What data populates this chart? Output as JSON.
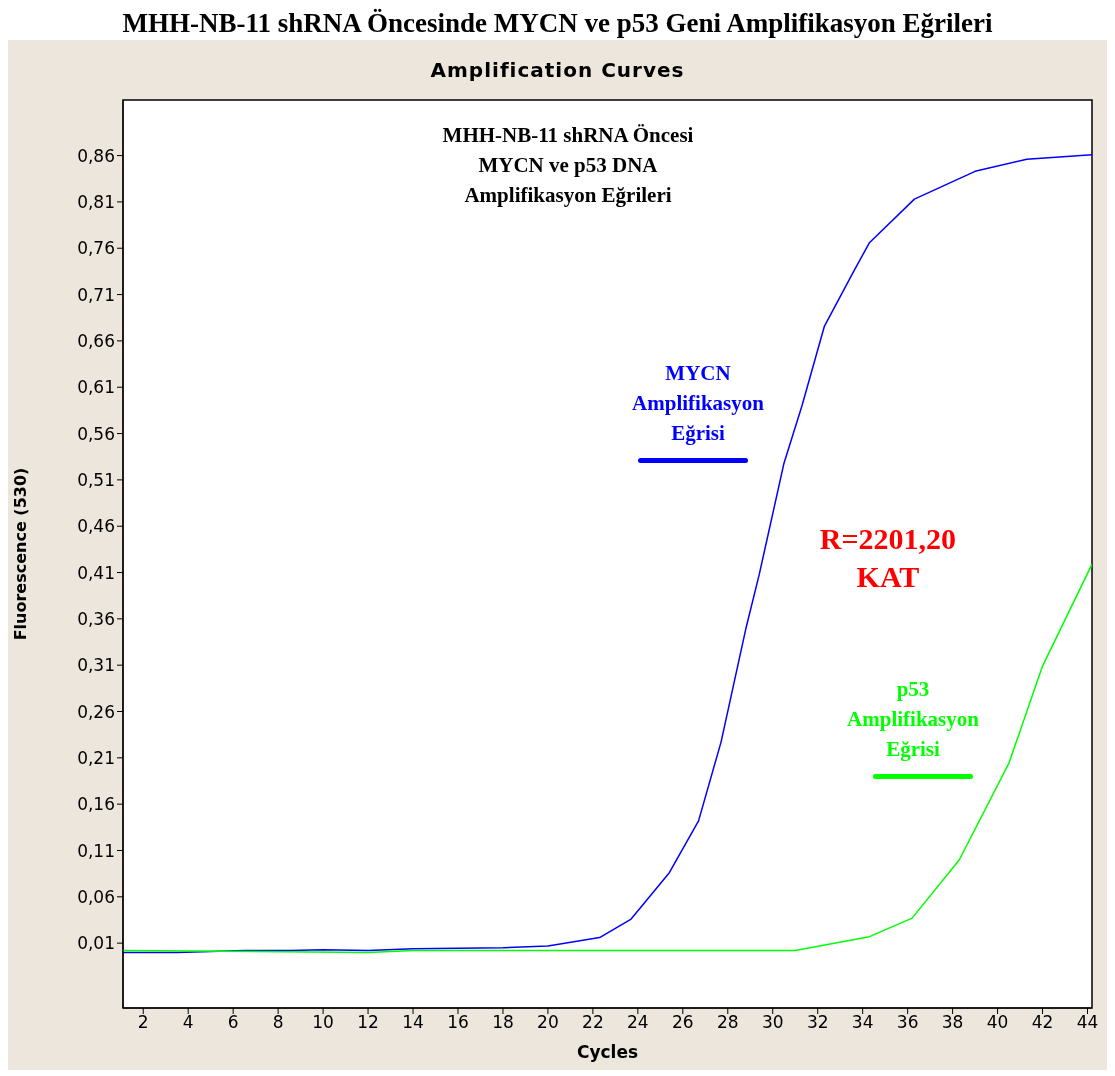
{
  "chart_data": {
    "type": "line",
    "title": "MHH-NB-11 shRNA Öncesinde MYCN ve p53 Geni Amplifikasyon Eğrileri",
    "subtitle": "Amplification Curves",
    "xlabel": "Cycles",
    "ylabel": "Fluorescence (530)",
    "annotations": [
      "MHH-NB-11 shRNA Öncesi MYCN ve p53 DNA Amplifikasyon Eğrileri",
      "R=2201,20 KAT"
    ],
    "xlim": [
      1.1,
      44.2
    ],
    "xticks": [
      2,
      4,
      6,
      8,
      10,
      12,
      14,
      16,
      18,
      20,
      22,
      24,
      26,
      28,
      30,
      32,
      34,
      36,
      38,
      40,
      42,
      44
    ],
    "ylim": [
      -0.06,
      0.92
    ],
    "yticks": [
      {
        "value": 0.01,
        "label": "0,01"
      },
      {
        "value": 0.06,
        "label": "0,06"
      },
      {
        "value": 0.11,
        "label": "0,11"
      },
      {
        "value": 0.16,
        "label": "0,16"
      },
      {
        "value": 0.21,
        "label": "0,21"
      },
      {
        "value": 0.26,
        "label": "0,26"
      },
      {
        "value": 0.31,
        "label": "0,31"
      },
      {
        "value": 0.36,
        "label": "0,36"
      },
      {
        "value": 0.41,
        "label": "0,41"
      },
      {
        "value": 0.46,
        "label": "0,46"
      },
      {
        "value": 0.51,
        "label": "0,51"
      },
      {
        "value": 0.56,
        "label": "0,56"
      },
      {
        "value": 0.61,
        "label": "0,61"
      },
      {
        "value": 0.66,
        "label": "0,66"
      },
      {
        "value": 0.71,
        "label": "0,71"
      },
      {
        "value": 0.76,
        "label": "0,76"
      },
      {
        "value": 0.81,
        "label": "0,81"
      },
      {
        "value": 0.86,
        "label": "0,86"
      }
    ],
    "legend": false,
    "line_style": "solid",
    "series": [
      {
        "name": "MYCN Amplifikasyon Eğrisi",
        "color": "#0000ff",
        "x": [
          1.1,
          3.5,
          6.5,
          8.5,
          10,
          12,
          14,
          18,
          20,
          22.3,
          23.7,
          25.4,
          26.7,
          27.7,
          28.8,
          29.4,
          30.5,
          31.3,
          32.3,
          33.6,
          34.3,
          36.3,
          39.0,
          41.3,
          44.2
        ],
        "values": [
          0.0,
          0.0,
          0.002,
          0.002,
          0.003,
          0.002,
          0.004,
          0.005,
          0.007,
          0.016,
          0.036,
          0.086,
          0.142,
          0.227,
          0.349,
          0.408,
          0.528,
          0.59,
          0.676,
          0.735,
          0.766,
          0.813,
          0.843,
          0.856,
          0.861
        ]
      },
      {
        "name": "p53 Amplifikasyon Eğrisi",
        "color": "#00ff00",
        "x": [
          1.1,
          12,
          14,
          21,
          22,
          31.0,
          34.3,
          36.2,
          38.3,
          40.5,
          42.0,
          44.2
        ],
        "values": [
          0.002,
          0.0,
          0.002,
          0.002,
          0.002,
          0.002,
          0.017,
          0.037,
          0.1,
          0.204,
          0.309,
          0.419
        ]
      }
    ]
  }
}
